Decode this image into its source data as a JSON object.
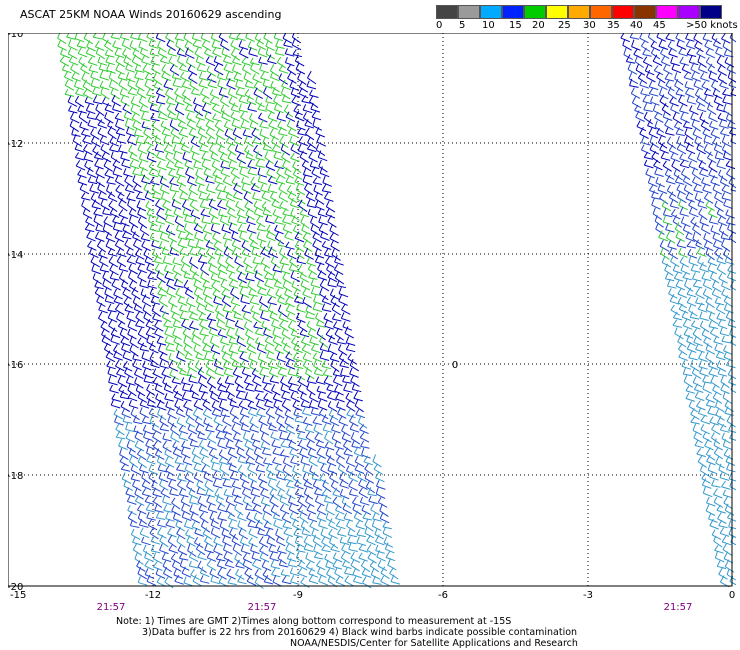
{
  "title": "ASCAT 25KM NOAA Winds 20160629 ascending",
  "scale": {
    "colors": [
      "#444444",
      "#9a9a9a",
      "#00aaff",
      "#0022ff",
      "#00cc00",
      "#ffff00",
      "#ffaa00",
      "#ff6600",
      "#ff0000",
      "#883300",
      "#ff00ff",
      "#aa00ff",
      "#000088"
    ],
    "labels": [
      "0",
      "5",
      "10",
      "15",
      "20",
      "25",
      "30",
      "35",
      "40",
      "45",
      ">50 knots"
    ]
  },
  "axes": {
    "x_ticks": [
      "-15",
      "-12",
      "-9",
      "-6",
      "-3",
      "0"
    ],
    "y_ticks": [
      "-10",
      "-12",
      "-14",
      "-16",
      "-18",
      "-20"
    ]
  },
  "times": [
    "21:57",
    "21:57",
    "21:57"
  ],
  "marker": "0",
  "notes": {
    "line1": "Note: 1) Times are GMT 2)Times along bottom correspond to measurement at -15S",
    "line2": "3)Data buffer is 22 hrs from 20160629 4) Black wind barbs indicate possible contamination",
    "line3": "NOAA/NESDIS/Center for Satellite Applications and Research"
  },
  "colors": {
    "green": "#33cc33",
    "blue": "#0000bb",
    "mid_blue": "#2244cc",
    "light_blue": "#3399cc"
  }
}
